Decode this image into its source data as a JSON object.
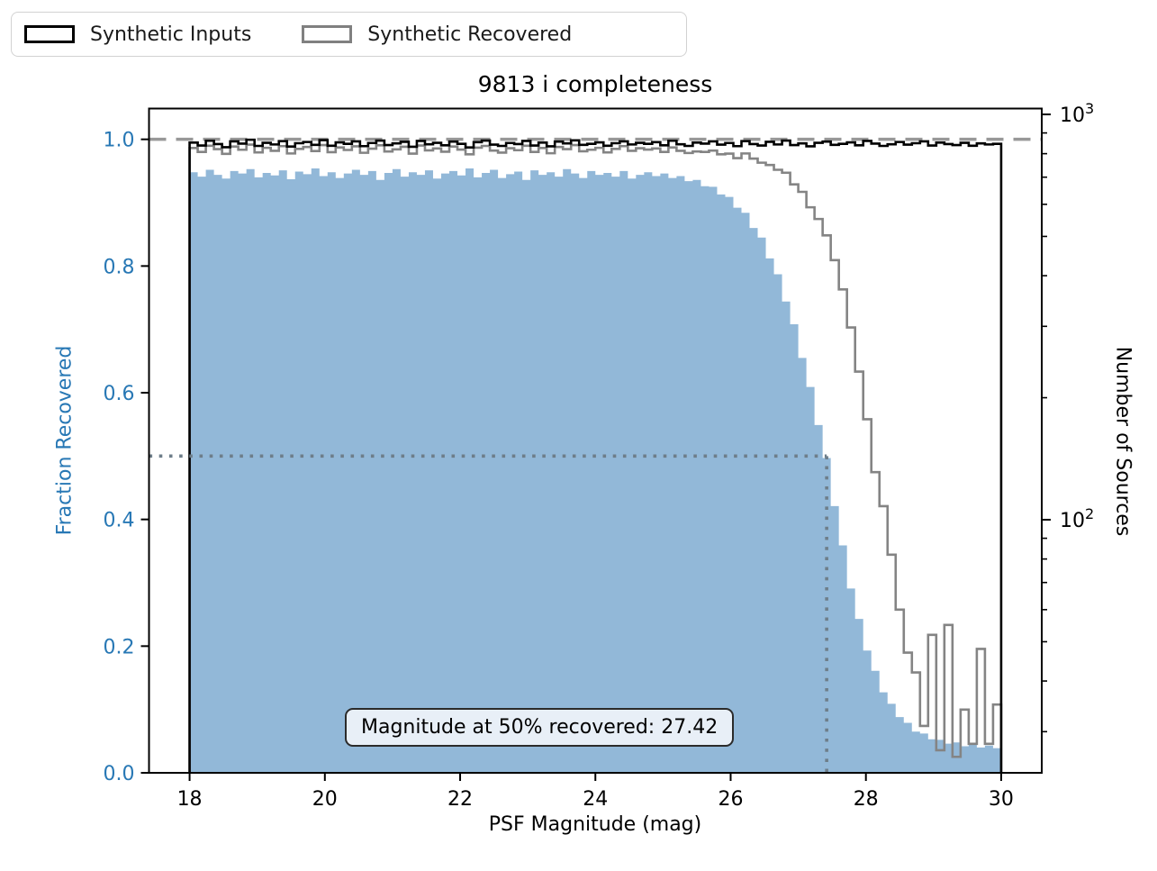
{
  "title": "9813 i completeness",
  "legend": {
    "items": [
      {
        "label": "Synthetic Inputs",
        "color": "#000000"
      },
      {
        "label": "Synthetic Recovered",
        "color": "#808080"
      }
    ]
  },
  "annotation": {
    "text": "Magnitude at 50% recovered: 27.42"
  },
  "axes": {
    "x": {
      "label": "PSF Magnitude (mag)",
      "lim": [
        17.4,
        30.6
      ],
      "tick_values": [
        18,
        20,
        22,
        24,
        26,
        28,
        30
      ],
      "tick_labels": [
        "18",
        "20",
        "22",
        "24",
        "26",
        "28",
        "30"
      ]
    },
    "y_left": {
      "label": "Fraction Recovered",
      "lim": [
        0,
        1.0486
      ],
      "color": "#2878b5",
      "tick_values": [
        0.0,
        0.2,
        0.4,
        0.6,
        0.8,
        1.0
      ],
      "tick_labels": [
        "0.0",
        "0.2",
        "0.4",
        "0.6",
        "0.8",
        "1.0"
      ]
    },
    "y_right": {
      "label": "Number of Sources",
      "scale": "log",
      "major_ticks": [
        {
          "count": 1000,
          "mantissa": "10",
          "exp": "3"
        },
        {
          "count": 100,
          "mantissa": "10",
          "exp": "2"
        }
      ],
      "minor_tick_counts": [
        900,
        800,
        700,
        600,
        500,
        400,
        300,
        200,
        90,
        80,
        70,
        60,
        50,
        40,
        30
      ]
    }
  },
  "chart_data": {
    "type": "bar",
    "subtype": "histogram-with-step-counts",
    "title": "9813 i completeness",
    "xlabel": "PSF Magnitude (mag)",
    "ylabel_left": "Fraction Recovered",
    "ylabel_right": "Number of Sources",
    "bin_start": 18,
    "bin_width": 0.12,
    "n_bins": 100,
    "mag_at_50pct_recovered": 27.42,
    "reference_lines": {
      "dashed_fraction": 1.0,
      "dotted_fraction": 0.5,
      "dotted_mag": 27.42
    },
    "colors": {
      "fraction_fill": "#92b8d8",
      "inputs_line": "#000000",
      "recovered_line": "#848484",
      "dashed_line": "#989898",
      "dotted_line": "#6e7e8a",
      "annotation_bg": "#e8eff7",
      "left_axis_text": "#2878b5"
    },
    "series": [
      {
        "name": "Fraction Recovered",
        "axis": "left",
        "style": "filled-bars",
        "values": [
          0.948,
          0.941,
          0.952,
          0.944,
          0.938,
          0.95,
          0.946,
          0.953,
          0.94,
          0.947,
          0.943,
          0.951,
          0.937,
          0.949,
          0.945,
          0.954,
          0.942,
          0.948,
          0.939,
          0.946,
          0.952,
          0.944,
          0.95,
          0.936,
          0.947,
          0.953,
          0.941,
          0.948,
          0.944,
          0.951,
          0.938,
          0.946,
          0.95,
          0.943,
          0.954,
          0.94,
          0.947,
          0.952,
          0.939,
          0.945,
          0.949,
          0.936,
          0.951,
          0.944,
          0.948,
          0.941,
          0.953,
          0.946,
          0.939,
          0.95,
          0.944,
          0.947,
          0.941,
          0.95,
          0.938,
          0.944,
          0.948,
          0.942,
          0.946,
          0.939,
          0.942,
          0.934,
          0.936,
          0.926,
          0.925,
          0.913,
          0.909,
          0.892,
          0.884,
          0.86,
          0.845,
          0.812,
          0.787,
          0.744,
          0.708,
          0.655,
          0.609,
          0.549,
          0.497,
          0.421,
          0.359,
          0.291,
          0.243,
          0.193,
          0.161,
          0.127,
          0.109,
          0.088,
          0.079,
          0.065,
          0.062,
          0.053,
          0.052,
          0.046,
          0.048,
          0.042,
          0.045,
          0.04,
          0.043,
          0.039
        ]
      },
      {
        "name": "Synthetic Inputs",
        "axis": "right-log",
        "style": "step",
        "values": [
          852,
          838,
          861,
          845,
          830,
          858,
          847,
          866,
          836,
          851,
          843,
          859,
          833,
          849,
          855,
          841,
          864,
          837,
          853,
          846,
          858,
          835,
          850,
          862,
          840,
          848,
          856,
          832,
          860,
          844,
          851,
          839,
          857,
          846,
          829,
          854,
          862,
          842,
          836,
          850,
          845,
          860,
          838,
          852,
          834,
          857,
          848,
          863,
          841,
          846,
          853,
          837,
          849,
          858,
          843,
          851,
          846,
          854,
          839,
          861,
          844,
          836,
          852,
          847,
          858,
          842,
          850,
          835,
          859,
          845,
          838,
          856,
          843,
          862,
          840,
          848,
          834,
          851,
          857,
          841,
          846,
          853,
          839,
          860,
          847,
          836,
          844,
          855,
          842,
          849,
          858,
          838,
          852,
          845,
          840,
          851,
          837,
          848,
          843,
          846
        ]
      },
      {
        "name": "Synthetic Recovered",
        "axis": "right-log",
        "style": "step",
        "values": [
          826,
          808,
          837,
          821,
          799,
          833,
          818,
          842,
          806,
          827,
          813,
          835,
          801,
          822,
          831,
          812,
          840,
          807,
          829,
          817,
          834,
          804,
          823,
          839,
          810,
          820,
          832,
          800,
          838,
          815,
          824,
          809,
          833,
          819,
          797,
          828,
          836,
          814,
          805,
          825,
          816,
          837,
          808,
          826,
          802,
          831,
          821,
          840,
          811,
          818,
          827,
          806,
          822,
          835,
          813,
          825,
          819,
          824,
          808,
          829,
          813,
          803,
          810,
          808,
          814,
          797,
          800,
          780,
          801,
          778,
          760,
          750,
          730,
          718,
          672,
          644,
          590,
          552,
          503,
          437,
          370,
          298,
          232,
          177,
          131,
          108,
          82,
          60,
          47,
          42,
          31,
          52,
          27,
          55,
          26,
          34,
          28,
          48,
          28,
          35
        ]
      }
    ]
  }
}
